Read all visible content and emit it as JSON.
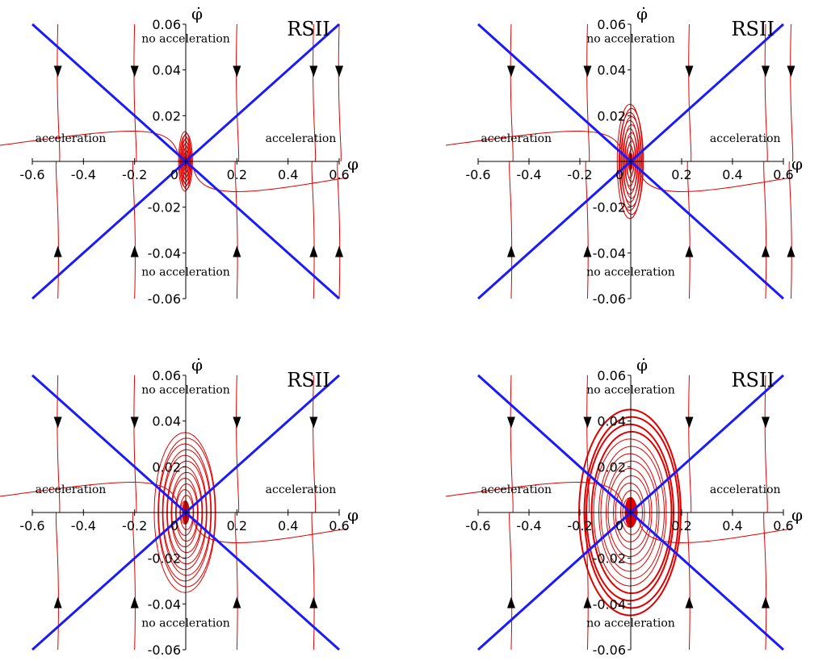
{
  "chart_data": [
    {
      "type": "line",
      "title": "",
      "model_label": "RSII",
      "xlabel": "φ",
      "ylabel": "φ̇",
      "xlim": [
        -0.6,
        0.6
      ],
      "ylim": [
        -0.06,
        0.06
      ],
      "x_ticks": [
        "-0.6",
        "-0.4",
        "-0.2",
        "0",
        "0.2",
        "0.4",
        "0.6"
      ],
      "y_ticks": [
        "0.06",
        "0.04",
        "0.02",
        "-0.02",
        "-0.04",
        "-0.06"
      ],
      "regions": [
        "acceleration",
        "acceleration",
        "no acceleration",
        "no acceleration"
      ],
      "boundary_color": "#1a1aff",
      "trajectory_color": "#e00000",
      "boundary_slope": 0.1,
      "spiral_radius": [
        0.025,
        0.013
      ]
    },
    {
      "type": "line",
      "title": "",
      "model_label": "RSII",
      "xlabel": "φ",
      "ylabel": "φ̇",
      "xlim": [
        -0.6,
        0.6
      ],
      "ylim": [
        -0.06,
        0.06
      ],
      "x_ticks": [
        "-0.6",
        "-0.4",
        "-0.2",
        "0",
        "0.2",
        "0.4",
        "0.6"
      ],
      "y_ticks": [
        "0.06",
        "0.04",
        "0.02",
        "-0.02",
        "-0.04",
        "-0.06"
      ],
      "regions": [
        "acceleration",
        "acceleration",
        "no acceleration",
        "no acceleration"
      ],
      "boundary_color": "#1a1aff",
      "trajectory_color": "#e00000",
      "boundary_slope": 0.1,
      "spiral_radius": [
        0.05,
        0.025
      ]
    },
    {
      "type": "line",
      "title": "",
      "model_label": "RSII",
      "xlabel": "φ",
      "ylabel": "φ̇",
      "xlim": [
        -0.6,
        0.6
      ],
      "ylim": [
        -0.06,
        0.06
      ],
      "x_ticks": [
        "-0.6",
        "-0.4",
        "-0.2",
        "0",
        "0.2",
        "0.4",
        "0.6"
      ],
      "y_ticks": [
        "0.06",
        "0.04",
        "0.02",
        "-0.02",
        "-0.04",
        "-0.06"
      ],
      "regions": [
        "acceleration",
        "acceleration",
        "no acceleration",
        "no acceleration"
      ],
      "boundary_color": "#1a1aff",
      "trajectory_color": "#e00000",
      "boundary_slope": 0.1,
      "spiral_radius": [
        0.12,
        0.035
      ]
    },
    {
      "type": "line",
      "title": "",
      "model_label": "RSII",
      "xlabel": "φ",
      "ylabel": "φ̇",
      "xlim": [
        -0.6,
        0.6
      ],
      "ylim": [
        -0.06,
        0.06
      ],
      "x_ticks": [
        "-0.6",
        "-0.4",
        "-0.2",
        "0",
        "0.2",
        "0.4",
        "0.6"
      ],
      "y_ticks": [
        "0.06",
        "0.04",
        "0.02",
        "-0.02",
        "-0.04",
        "-0.06"
      ],
      "regions": [
        "acceleration",
        "acceleration",
        "no acceleration",
        "no acceleration"
      ],
      "boundary_color": "#1a1aff",
      "trajectory_color": "#e00000",
      "boundary_slope": 0.1,
      "spiral_radius": [
        0.2,
        0.045
      ]
    }
  ]
}
